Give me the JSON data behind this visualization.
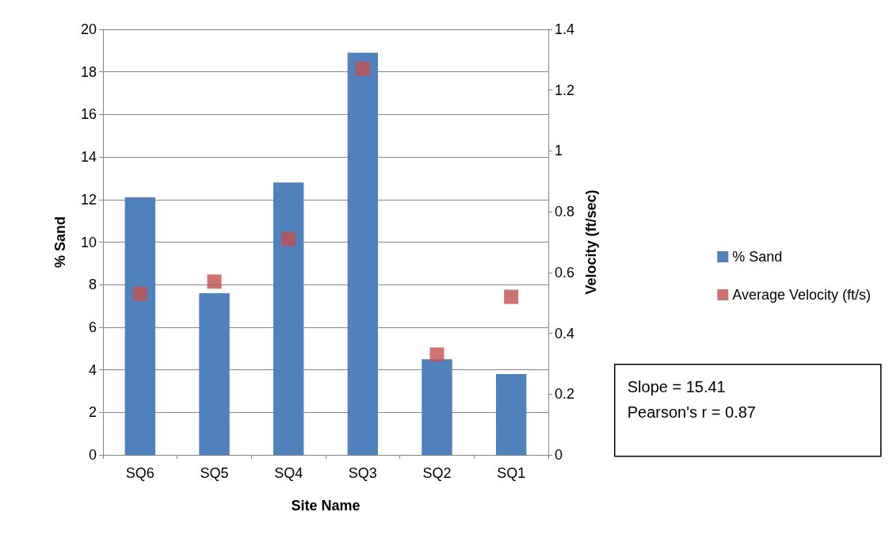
{
  "chart_data": {
    "type": "bar",
    "categories": [
      "SQ6",
      "SQ5",
      "SQ4",
      "SQ3",
      "SQ2",
      "SQ1"
    ],
    "xlabel": "Site Name",
    "ylabel": "% Sand",
    "y2label": "Velocity (ft/sec)",
    "series": [
      {
        "name": "% Sand",
        "color": "#4f81bd",
        "values": [
          12.1,
          7.6,
          12.8,
          18.9,
          4.5,
          3.8
        ]
      },
      {
        "name": "Average Velocity (ft/s)",
        "type": "scatter",
        "axis": "y2",
        "color": "#c0504d",
        "values": [
          0.53,
          0.57,
          0.71,
          1.27,
          0.33,
          0.52
        ]
      }
    ],
    "ylim": [
      0,
      20
    ],
    "yticks": [
      0,
      2,
      4,
      6,
      8,
      10,
      12,
      14,
      16,
      18,
      20
    ],
    "y2lim": [
      0,
      1.4
    ],
    "y2ticks": [
      0,
      0.2,
      0.4,
      0.6,
      0.8,
      1,
      1.2,
      1.4
    ],
    "grid": "y",
    "legend": "right",
    "marker": "square",
    "annotations": [
      "Slope = 15.41",
      "Pearson's r = 0.87"
    ]
  }
}
